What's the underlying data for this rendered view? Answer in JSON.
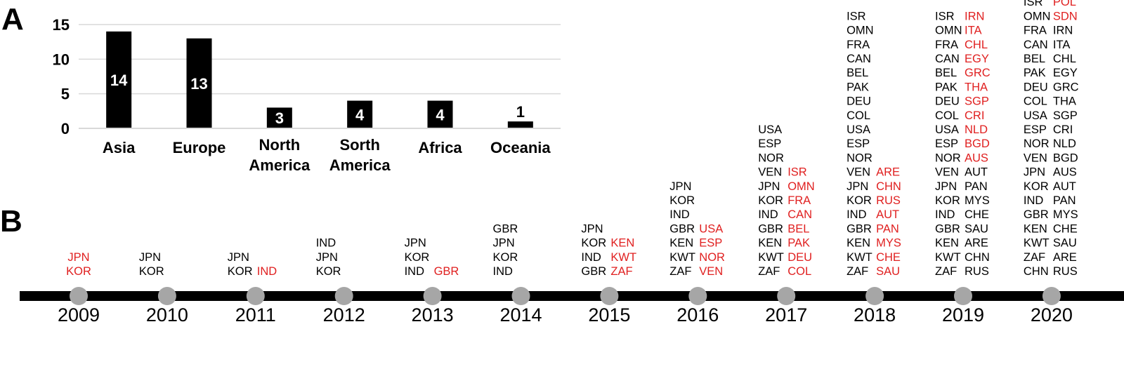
{
  "panels": {
    "a": "A",
    "b": "B"
  },
  "chart_data": {
    "type": "bar",
    "categories": [
      "Asia",
      "Europe",
      "North America",
      "Sorth America",
      "Africa",
      "Oceania"
    ],
    "values": [
      14,
      13,
      3,
      4,
      4,
      1
    ],
    "ylim": [
      0,
      15
    ],
    "yticks": [
      0,
      5,
      10,
      15
    ],
    "grid": true,
    "bar_color": "#000000",
    "label_color_inside": "#ffffff",
    "label_color_outside": "#000000"
  },
  "timeline": {
    "years": [
      "2009",
      "2010",
      "2011",
      "2012",
      "2013",
      "2014",
      "2015",
      "2016",
      "2017",
      "2018",
      "2019",
      "2020"
    ],
    "colors": {
      "existing": "#000000",
      "new": "#e02020",
      "line": "#000000",
      "node": "#a6a6a6"
    },
    "columns": [
      {
        "year": "2009",
        "left": [],
        "right": [],
        "new_center": [
          "JPN",
          "KOR"
        ]
      },
      {
        "year": "2010",
        "left": [
          "JPN",
          "KOR"
        ],
        "right": []
      },
      {
        "year": "2011",
        "left": [
          "JPN",
          "KOR"
        ],
        "right": [
          "IND"
        ]
      },
      {
        "year": "2012",
        "left": [
          "IND",
          "JPN",
          "KOR"
        ],
        "right": []
      },
      {
        "year": "2013",
        "left": [
          "JPN",
          "KOR",
          "IND"
        ],
        "right": [
          "GBR"
        ]
      },
      {
        "year": "2014",
        "left": [
          "GBR",
          "JPN",
          "KOR",
          "IND"
        ],
        "right": []
      },
      {
        "year": "2015",
        "left": [
          "JPN",
          "KOR",
          "IND",
          "GBR"
        ],
        "right": [
          "KEN",
          "KWT",
          "ZAF"
        ]
      },
      {
        "year": "2016",
        "left": [
          "JPN",
          "KOR",
          "IND",
          "GBR",
          "KEN",
          "KWT",
          "ZAF"
        ],
        "right": [
          "USA",
          "ESP",
          "NOR",
          "VEN"
        ]
      },
      {
        "year": "2017",
        "left": [
          "USA",
          "ESP",
          "NOR",
          "VEN",
          "JPN",
          "KOR",
          "IND",
          "GBR",
          "KEN",
          "KWT",
          "ZAF"
        ],
        "right": [
          "ISR",
          "OMN",
          "FRA",
          "CAN",
          "BEL",
          "PAK",
          "DEU",
          "COL"
        ]
      },
      {
        "year": "2018",
        "left": [
          "ISR",
          "OMN",
          "FRA",
          "CAN",
          "BEL",
          "PAK",
          "DEU",
          "COL",
          "USA",
          "ESP",
          "NOR",
          "VEN",
          "JPN",
          "KOR",
          "IND",
          "GBR",
          "KEN",
          "KWT",
          "ZAF"
        ],
        "right": [
          "ARE",
          "CHN",
          "RUS",
          "AUT",
          "PAN",
          "MYS",
          "CHE",
          "SAU"
        ]
      },
      {
        "year": "2019",
        "left": [
          "ISR",
          "OMN",
          "FRA",
          "CAN",
          "BEL",
          "PAK",
          "DEU",
          "COL",
          "USA",
          "ESP",
          "NOR",
          "VEN",
          "JPN",
          "KOR",
          "IND",
          "GBR",
          "KEN",
          "KWT",
          "ZAF"
        ],
        "right": [
          "IRN",
          "ITA",
          "CHL",
          "EGY",
          "GRC",
          "THA",
          "SGP",
          "CRI",
          "NLD",
          "BGD",
          "AUS",
          "AUT",
          "PAN",
          "MYS",
          "CHE",
          "SAU",
          "ARE",
          "CHN",
          "RUS"
        ],
        "right_new_count": 11
      },
      {
        "year": "2020",
        "left": [
          "ISR",
          "OMN",
          "FRA",
          "CAN",
          "BEL",
          "PAK",
          "DEU",
          "COL",
          "USA",
          "ESP",
          "NOR",
          "VEN",
          "JPN",
          "KOR",
          "IND",
          "GBR",
          "KEN",
          "KWT",
          "ZAF",
          "CHN"
        ],
        "right": [
          "POL",
          "SDN",
          "IRN",
          "ITA",
          "CHL",
          "EGY",
          "GRC",
          "THA",
          "SGP",
          "CRI",
          "NLD",
          "BGD",
          "AUS",
          "AUT",
          "PAN",
          "MYS",
          "CHE",
          "SAU",
          "ARE",
          "RUS"
        ],
        "right_new_count": 2
      }
    ]
  }
}
